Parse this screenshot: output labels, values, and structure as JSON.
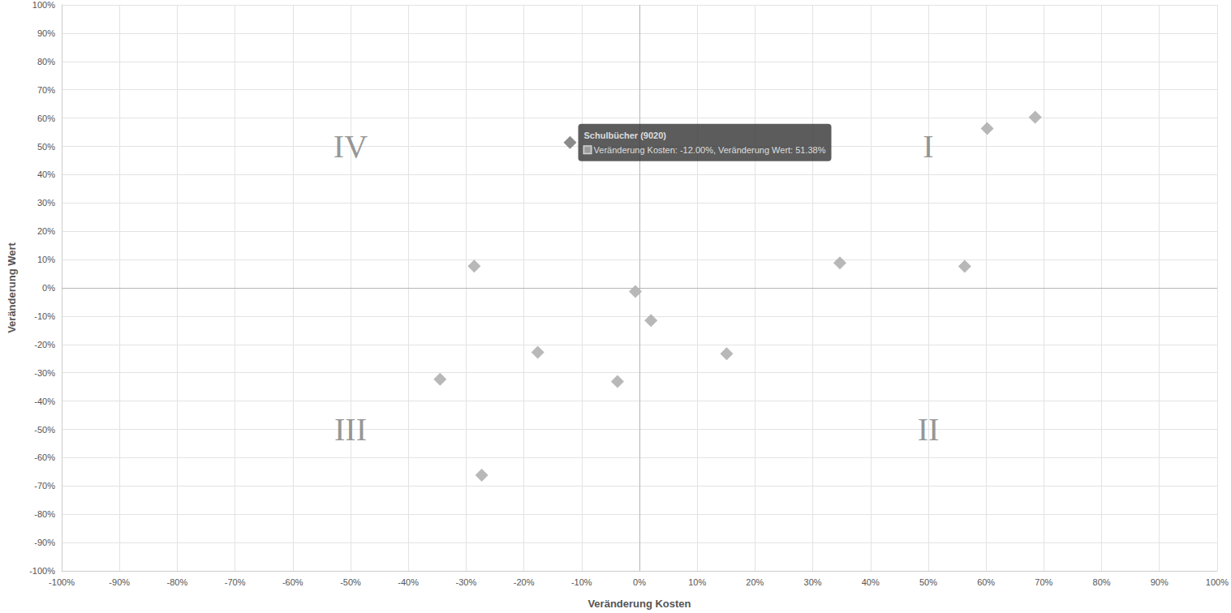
{
  "chart_data": {
    "type": "scatter",
    "x_label": "Veränderung Kosten",
    "y_label": "Veränderung Wert",
    "xlim": [
      -100,
      100
    ],
    "ylim": [
      -100,
      100
    ],
    "xticks": [
      {
        "value": -100,
        "label": "-100%"
      },
      {
        "value": -90,
        "label": "-90%"
      },
      {
        "value": -80,
        "label": "-80%"
      },
      {
        "value": -70,
        "label": "-70%"
      },
      {
        "value": -60,
        "label": "-60%"
      },
      {
        "value": -50,
        "label": "-50%"
      },
      {
        "value": -40,
        "label": "-40%"
      },
      {
        "value": -30,
        "label": "-30%"
      },
      {
        "value": -20,
        "label": "-20%"
      },
      {
        "value": -10,
        "label": "-10%"
      },
      {
        "value": 0,
        "label": "0%"
      },
      {
        "value": 10,
        "label": "10%"
      },
      {
        "value": 20,
        "label": "20%"
      },
      {
        "value": 30,
        "label": "30%"
      },
      {
        "value": 40,
        "label": "40%"
      },
      {
        "value": 50,
        "label": "50%"
      },
      {
        "value": 60,
        "label": "60%"
      },
      {
        "value": 70,
        "label": "70%"
      },
      {
        "value": 80,
        "label": "80%"
      },
      {
        "value": 90,
        "label": "90%"
      },
      {
        "value": 100,
        "label": "100%"
      }
    ],
    "yticks": [
      {
        "value": -100,
        "label": "-100%"
      },
      {
        "value": -90,
        "label": "-90%"
      },
      {
        "value": -80,
        "label": "-80%"
      },
      {
        "value": -70,
        "label": "-70%"
      },
      {
        "value": -60,
        "label": "-60%"
      },
      {
        "value": -50,
        "label": "-50%"
      },
      {
        "value": -40,
        "label": "-40%"
      },
      {
        "value": -30,
        "label": "-30%"
      },
      {
        "value": -20,
        "label": "-20%"
      },
      {
        "value": -10,
        "label": "-10%"
      },
      {
        "value": 0,
        "label": "0%"
      },
      {
        "value": 10,
        "label": "10%"
      },
      {
        "value": 20,
        "label": "20%"
      },
      {
        "value": 30,
        "label": "30%"
      },
      {
        "value": 40,
        "label": "40%"
      },
      {
        "value": 50,
        "label": "50%"
      },
      {
        "value": 60,
        "label": "60%"
      },
      {
        "value": 70,
        "label": "70%"
      },
      {
        "value": 80,
        "label": "80%"
      },
      {
        "value": 90,
        "label": "90%"
      },
      {
        "value": 100,
        "label": "100%"
      }
    ],
    "grid": true,
    "series": [
      {
        "marker": "diamond",
        "x": [
          -12.0,
          60.2,
          68.5,
          34.7,
          56.3,
          -28.6,
          -0.7,
          2.0,
          15.1,
          -17.6,
          -3.8,
          -34.5,
          -27.3
        ],
        "y": [
          51.38,
          56.3,
          60.3,
          8.8,
          7.6,
          7.7,
          -1.3,
          -11.5,
          -23.3,
          -22.8,
          -33.1,
          -32.3,
          -66.2
        ],
        "colors": [
          "#6e6e6e",
          "#a6a6a6",
          "#a6a6a6",
          "#a6a6a6",
          "#a6a6a6",
          "#a6a6a6",
          "#a6a6a6",
          "#a6a6a6",
          "#a6a6a6",
          "#a6a6a6",
          "#a6a6a6",
          "#a6a6a6",
          "#a6a6a6"
        ]
      }
    ],
    "annotations": [
      {
        "text": "IV",
        "x": -50,
        "y": 50
      },
      {
        "text": "I",
        "x": 50,
        "y": 50
      },
      {
        "text": "III",
        "x": -50,
        "y": -50
      },
      {
        "text": "II",
        "x": 50,
        "y": -50
      }
    ],
    "tooltip": {
      "title": "Schulbücher (9020)",
      "text": "Veränderung Kosten: -12.00%, Veränderung Wert: 51.38%",
      "x": -12.0,
      "y": 51.38
    }
  }
}
